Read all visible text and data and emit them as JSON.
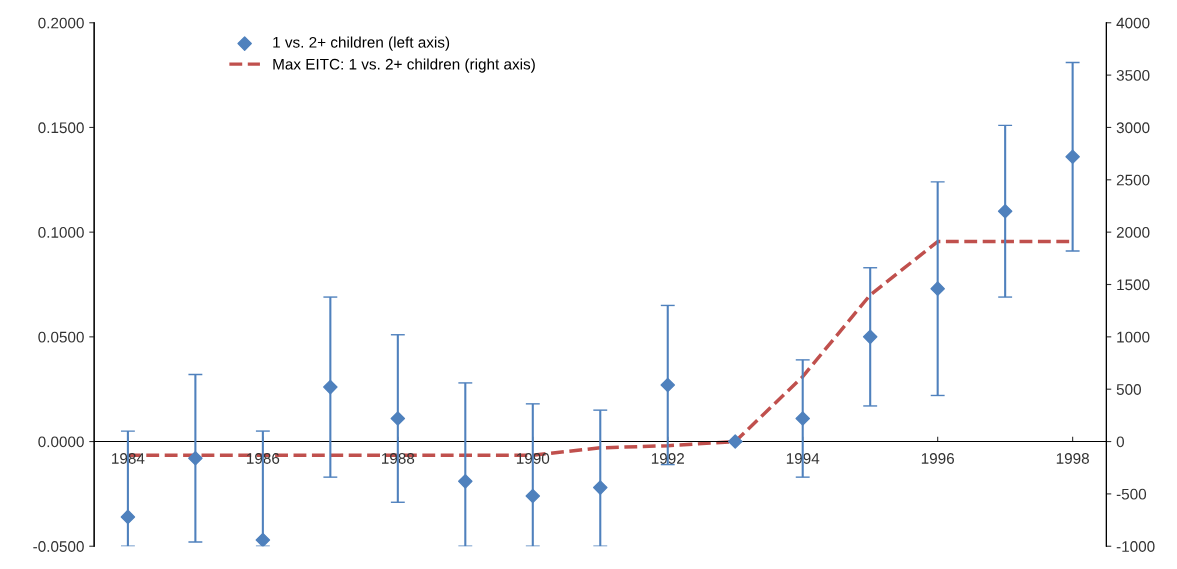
{
  "chart_data": {
    "type": "scatter",
    "x": [
      1984,
      1985,
      1986,
      1987,
      1988,
      1989,
      1990,
      1991,
      1992,
      1993,
      1994,
      1995,
      1996,
      1997,
      1998
    ],
    "series": [
      {
        "name": "1 vs. 2+ children (left axis)",
        "color": "#4f81bd",
        "marker": "diamond",
        "values": [
          -0.036,
          -0.008,
          -0.047,
          0.026,
          0.011,
          -0.019,
          -0.026,
          -0.022,
          0.027,
          0.0,
          0.011,
          0.05,
          0.073,
          0.11,
          0.136
        ],
        "errors": [
          [
            -0.05,
            0.005
          ],
          0.04,
          [
            -0.05,
            0.005
          ],
          0.043,
          0.04,
          [
            -0.05,
            0.028
          ],
          [
            -0.05,
            0.018
          ],
          [
            -0.05,
            0.015
          ],
          0.038,
          0,
          0.028,
          0.033,
          0.051,
          0.041,
          0.045
        ]
      },
      {
        "name": "Max EITC: 1 vs. 2+ children (right axis)",
        "type": "line",
        "axis": "y2",
        "color": "#c0504d",
        "line_style": "dashed",
        "marker": "none",
        "values": [
          -130,
          -130,
          -130,
          -130,
          -130,
          -130,
          -130,
          -60,
          -40,
          0,
          620,
          1400,
          1910,
          1910,
          1910
        ]
      }
    ],
    "xlim": [
      1983.5,
      1998.5
    ],
    "xticks": [
      1984,
      1986,
      1988,
      1990,
      1992,
      1994,
      1996,
      1998
    ],
    "ylim": [
      -0.05,
      0.2
    ],
    "yticks": [
      {
        "value": -0.05,
        "label": "-0.0500"
      },
      {
        "value": 0,
        "label": "0.0000"
      },
      {
        "value": 0.05,
        "label": "0.0500"
      },
      {
        "value": 0.1,
        "label": "0.1000"
      },
      {
        "value": 0.15,
        "label": "0.1500"
      },
      {
        "value": 0.2,
        "label": "0.2000"
      }
    ],
    "y2lim": [
      -1000,
      4000
    ],
    "y2ticks": [
      -1000,
      -500,
      0,
      500,
      1000,
      1500,
      2000,
      2500,
      3000,
      3500,
      4000
    ],
    "grid": false,
    "legend": "top left"
  }
}
